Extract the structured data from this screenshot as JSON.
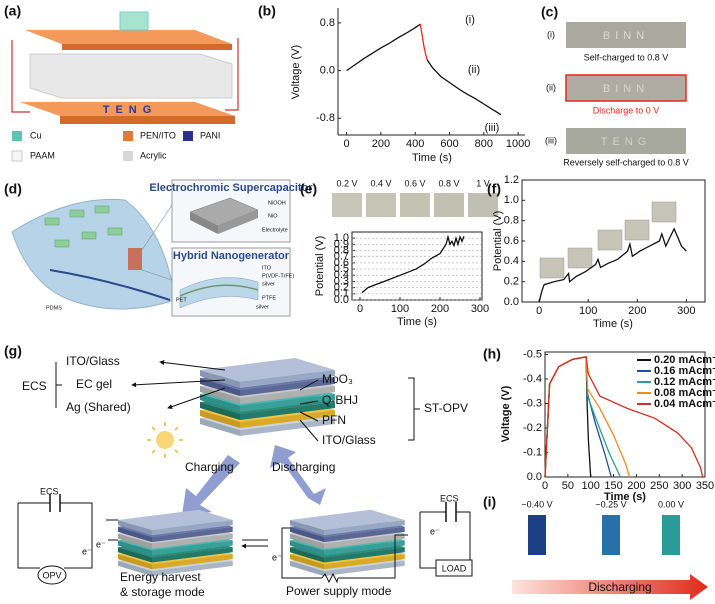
{
  "panels": {
    "a": {
      "label": "(a)",
      "device_text": "TENG",
      "legend": [
        "Cu",
        "PEN/ITO",
        "PANI",
        "PAAM",
        "Acrylic"
      ]
    },
    "b": {
      "label": "(b)"
    },
    "c": {
      "label": "(c)",
      "rows": [
        {
          "marker": "(i)",
          "photo_text": "BINN",
          "caption": "Self-charged to 0.8 V"
        },
        {
          "marker": "(ii)",
          "photo_text": "BINN",
          "caption": "Discharge to 0 V"
        },
        {
          "marker": "(iii)",
          "photo_text": "TENG",
          "caption": "Reversely self-charged to 0.8 V"
        }
      ]
    },
    "d": {
      "label": "(d)",
      "supercap_title": "Electrochromic Supercapacitor",
      "supercap_layers": [
        "NiOOH",
        "NiO",
        "Electrolyte"
      ],
      "nanogen_title": "Hybrid Nanogenerator",
      "nanogen_layers": [
        "ITO",
        "P(VDF-TrFE)",
        "silver",
        "PTFE",
        "silver"
      ],
      "pet": "PET",
      "pdms": "PDMS"
    },
    "e": {
      "label": "(e)",
      "photo_labels": [
        "0.2 V",
        "0.4 V",
        "0.6 V",
        "0.8 V",
        "1 V"
      ]
    },
    "f": {
      "label": "(f)"
    },
    "g": {
      "label": "(g)",
      "ecs": "ECS",
      "ecs_layers": [
        "ITO/Glass",
        "EC gel",
        "Ag (Shared)"
      ],
      "opv": "ST-OPV",
      "opv_layers": [
        "MoO₃",
        "Q-BHJ",
        "PFN",
        "ITO/Glass"
      ],
      "charging": "Charging",
      "discharging": "Discharging",
      "left_circuit": {
        "ecs": "ECS",
        "opv": "OPV",
        "electron_top": "e⁻",
        "electron_bottom": "e⁻"
      },
      "mode_left": [
        "Energy harvest",
        "& storage mode"
      ],
      "mode_right": "Power supply mode",
      "electron_mid": "e⁻",
      "right_circuit": {
        "ecs": "ECS",
        "load": "LOAD",
        "electron": "e⁻"
      }
    },
    "h": {
      "label": "(h)"
    },
    "i": {
      "label": "(i)",
      "swatches": [
        "−0.40 V",
        "−0.25 V",
        "0.00 V"
      ],
      "arrow_text": "Discharging"
    }
  },
  "chart_data": [
    {
      "type": "line",
      "xlabel": "Time (s)",
      "ylabel": "Voltage (V)",
      "xlim": [
        -50,
        1040
      ],
      "ylim": [
        -1.08,
        1.05
      ],
      "xticks": [
        0,
        200,
        400,
        600,
        800,
        1000
      ],
      "yticks": [
        -0.8,
        {
          "value": 0,
          "label": "0.0"
        },
        0.8
      ],
      "series": [
        {
          "color": "#111111",
          "x": [
            0,
            50,
            100,
            150,
            200,
            250,
            300,
            350,
            400,
            430
          ],
          "values": [
            0.0,
            0.1,
            0.2,
            0.29,
            0.38,
            0.46,
            0.55,
            0.63,
            0.72,
            0.78
          ]
        },
        {
          "color": "#e8281e",
          "x": [
            430,
            440,
            450,
            460,
            470
          ],
          "values": [
            0.78,
            0.6,
            0.42,
            0.28,
            0.18
          ]
        },
        {
          "color": "#111111",
          "x": [
            470,
            500,
            550,
            600,
            650,
            700,
            750,
            800,
            850,
            900
          ],
          "values": [
            0.18,
            0.05,
            -0.1,
            -0.2,
            -0.3,
            -0.39,
            -0.47,
            -0.56,
            -0.65,
            -0.74
          ]
        }
      ],
      "annotations": [
        "(i)",
        "(ii)",
        "(iii)"
      ]
    },
    {
      "type": "line",
      "xlabel": "Time (s)",
      "ylabel": "Potential (V)",
      "xlim": [
        -20,
        305
      ],
      "ylim": [
        0,
        1.1
      ],
      "grid": true,
      "xticks": [
        0,
        100,
        200,
        300
      ],
      "yticks": [
        {
          "value": 0,
          "label": "0.0"
        },
        0.1,
        0.2,
        0.3,
        0.4,
        0.5,
        0.6,
        0.7,
        0.8,
        0.9,
        {
          "value": 1,
          "label": "1.0"
        }
      ],
      "series": [
        {
          "color": "#111111",
          "x": [
            5,
            20,
            40,
            60,
            80,
            100,
            120,
            140,
            160,
            180,
            200,
            215,
            220,
            225,
            230,
            235,
            240,
            245,
            250,
            255,
            260
          ],
          "values": [
            0.12,
            0.2,
            0.25,
            0.3,
            0.35,
            0.4,
            0.45,
            0.5,
            0.58,
            0.68,
            0.75,
            0.9,
            1.02,
            0.9,
            0.95,
            0.88,
            1.0,
            0.9,
            1.02,
            0.95,
            1.03
          ]
        }
      ]
    },
    {
      "type": "line",
      "xlabel": "Time (s)",
      "ylabel": "Potential (V)",
      "xlim": [
        -35,
        338
      ],
      "ylim": [
        0,
        1.2
      ],
      "xticks": [
        0,
        100,
        200,
        300
      ],
      "yticks": [
        {
          "value": 0,
          "label": "0.0"
        },
        0.2,
        0.4,
        0.6,
        0.8,
        {
          "value": 1,
          "label": "1.0"
        },
        1.2
      ],
      "series": [
        {
          "color": "#111111",
          "x": [
            0,
            5,
            10,
            30,
            50,
            60,
            62,
            75,
            95,
            115,
            120,
            125,
            140,
            160,
            180,
            185,
            190,
            205,
            225,
            245,
            250,
            258,
            265,
            275,
            283,
            290,
            300
          ],
          "values": [
            0,
            0.1,
            0.17,
            0.2,
            0.22,
            0.28,
            0.2,
            0.25,
            0.3,
            0.37,
            0.42,
            0.34,
            0.38,
            0.42,
            0.5,
            0.57,
            0.45,
            0.5,
            0.55,
            0.6,
            0.67,
            0.55,
            0.62,
            0.72,
            0.63,
            0.55,
            0.5
          ]
        }
      ]
    },
    {
      "type": "line",
      "xlabel": "Time (s)",
      "ylabel": "Voltage (V)",
      "xlim": [
        0,
        350
      ],
      "ylim": [
        0,
        -0.51
      ],
      "legend": "upper right",
      "xticks": [
        0,
        50,
        100,
        150,
        200,
        250,
        300,
        350
      ],
      "yticks": [
        -0.5,
        -0.4,
        -0.3,
        -0.2,
        -0.1,
        {
          "value": 0,
          "label": "0.0"
        }
      ],
      "series": [
        {
          "name": "0.20 mAcm⁻²",
          "color": "#111111",
          "x": [
            0,
            10,
            30,
            60,
            90,
            92,
            95,
            100
          ],
          "values": [
            0,
            -0.38,
            -0.45,
            -0.48,
            -0.49,
            -0.3,
            -0.15,
            0
          ]
        },
        {
          "name": "0.16 mAcm⁻²",
          "color": "#1f4e9e",
          "x": [
            0,
            10,
            30,
            60,
            90,
            93,
            110,
            130,
            145
          ],
          "values": [
            0,
            -0.38,
            -0.45,
            -0.48,
            -0.49,
            -0.34,
            -0.22,
            -0.1,
            0
          ]
        },
        {
          "name": "0.12 mAcm⁻²",
          "color": "#2a9d8f",
          "x": [
            0,
            10,
            30,
            60,
            90,
            93,
            115,
            140,
            160,
            165
          ],
          "values": [
            0,
            -0.38,
            -0.45,
            -0.48,
            -0.49,
            -0.33,
            -0.22,
            -0.1,
            -0.02,
            0
          ]
        },
        {
          "name": "0.08 mAcm⁻²",
          "color": "#f08a24",
          "x": [
            0,
            10,
            30,
            60,
            90,
            93,
            120,
            150,
            175,
            185
          ],
          "values": [
            0,
            -0.38,
            -0.45,
            -0.48,
            -0.49,
            -0.36,
            -0.28,
            -0.17,
            -0.06,
            0
          ]
        },
        {
          "name": "0.04 mAcm⁻²",
          "color": "#d62d20",
          "x": [
            0,
            10,
            30,
            60,
            90,
            95,
            120,
            180,
            240,
            290,
            320,
            340,
            345
          ],
          "values": [
            0,
            -0.38,
            -0.45,
            -0.48,
            -0.49,
            -0.42,
            -0.33,
            -0.28,
            -0.24,
            -0.18,
            -0.12,
            -0.04,
            0
          ]
        }
      ]
    }
  ]
}
